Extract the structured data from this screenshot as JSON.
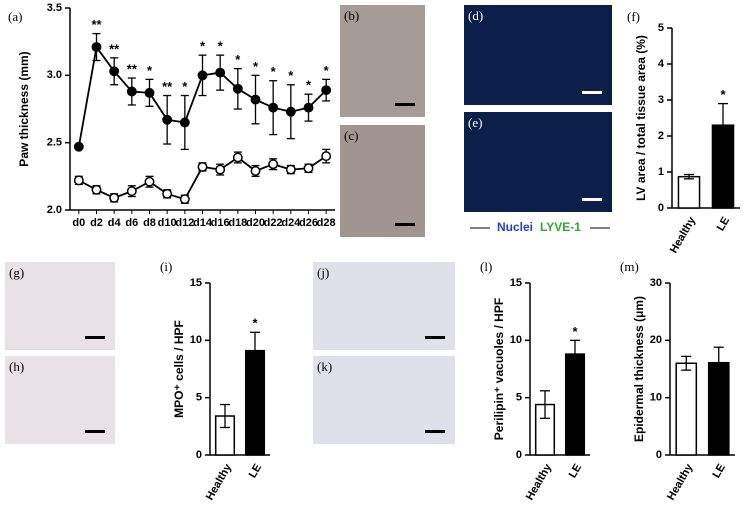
{
  "chart_data": [
    {
      "type": "line",
      "panel_label": "(a)",
      "ylabel": "Paw thickness (mm)",
      "categories": [
        "d0",
        "d2",
        "d4",
        "d6",
        "d8",
        "d10",
        "d12",
        "d14",
        "d16",
        "d18",
        "d20",
        "d22",
        "d24",
        "d26",
        "d28"
      ],
      "ylim": [
        2.0,
        3.5
      ],
      "yticks": [
        {
          "value": 2.0,
          "label": "2.0"
        },
        {
          "value": 2.5,
          "label": "2.5"
        },
        {
          "value": 3.0,
          "label": "3.0"
        },
        {
          "value": 3.5,
          "label": "3.5"
        }
      ],
      "series": [
        {
          "color": "#000000",
          "marker_fill": "#000000",
          "values": [
            2.47,
            3.21,
            3.03,
            2.88,
            2.87,
            2.67,
            2.65,
            3.0,
            3.02,
            2.9,
            2.82,
            2.76,
            2.73,
            2.76,
            2.89
          ],
          "errors": [
            0.0,
            0.1,
            0.1,
            0.1,
            0.1,
            0.18,
            0.2,
            0.15,
            0.13,
            0.15,
            0.18,
            0.2,
            0.2,
            0.1,
            0.08
          ],
          "stars": [
            null,
            "**",
            "**",
            "**",
            "*",
            "**",
            "*",
            "*",
            "*",
            "*",
            "*",
            "*",
            "*",
            "*",
            "*"
          ]
        },
        {
          "color": "#000000",
          "marker_fill": "#ffffff",
          "values": [
            2.22,
            2.15,
            2.09,
            2.14,
            2.21,
            2.12,
            2.08,
            2.32,
            2.3,
            2.39,
            2.29,
            2.34,
            2.3,
            2.31,
            2.4
          ],
          "errors": [
            0.03,
            0.03,
            0.03,
            0.04,
            0.04,
            0.03,
            0.03,
            0.03,
            0.04,
            0.04,
            0.04,
            0.04,
            0.03,
            0.03,
            0.05
          ]
        }
      ]
    },
    {
      "type": "bar",
      "panel_label": "(f)",
      "ylabel": "LV area / total tissue area (%)",
      "categories": [
        "Healthy",
        "LE"
      ],
      "values": [
        0.87,
        2.3
      ],
      "errors": [
        0.06,
        0.6
      ],
      "colors": [
        "#ffffff",
        "#000000"
      ],
      "stars": [
        null,
        "*"
      ],
      "ylim": [
        0,
        5
      ],
      "yticks": [
        0,
        1,
        2,
        3,
        4,
        5
      ]
    },
    {
      "type": "bar",
      "panel_label": "(i)",
      "ylabel": "MPO⁺ cells / HPF",
      "categories": [
        "Healthy",
        "LE"
      ],
      "values": [
        3.4,
        9.1
      ],
      "errors": [
        1.0,
        1.6
      ],
      "colors": [
        "#ffffff",
        "#000000"
      ],
      "stars": [
        null,
        "*"
      ],
      "ylim": [
        0,
        15
      ],
      "yticks": [
        0,
        5,
        10,
        15
      ]
    },
    {
      "type": "bar",
      "panel_label": "(l)",
      "ylabel": "Perilipin⁺ vacuoles / HPF",
      "categories": [
        "Healthy",
        "LE"
      ],
      "values": [
        4.4,
        8.8
      ],
      "errors": [
        1.2,
        1.2
      ],
      "colors": [
        "#ffffff",
        "#000000"
      ],
      "stars": [
        null,
        "*"
      ],
      "ylim": [
        0,
        15
      ],
      "yticks": [
        0,
        5,
        10,
        15
      ]
    },
    {
      "type": "bar",
      "panel_label": "(m)",
      "ylabel": "Epidermal thickness (μm)",
      "categories": [
        "Healthy",
        "LE"
      ],
      "values": [
        16.0,
        16.1
      ],
      "errors": [
        1.2,
        2.7
      ],
      "colors": [
        "#ffffff",
        "#000000"
      ],
      "ylim": [
        0,
        30
      ],
      "yticks": [
        0,
        10,
        20,
        30
      ]
    }
  ],
  "image_panels": [
    "(b)",
    "(c)",
    "(d)",
    "(e)",
    "(g)",
    "(h)",
    "(j)",
    "(k)"
  ],
  "image_legend": [
    "Nuclei",
    "LYVE-1"
  ]
}
